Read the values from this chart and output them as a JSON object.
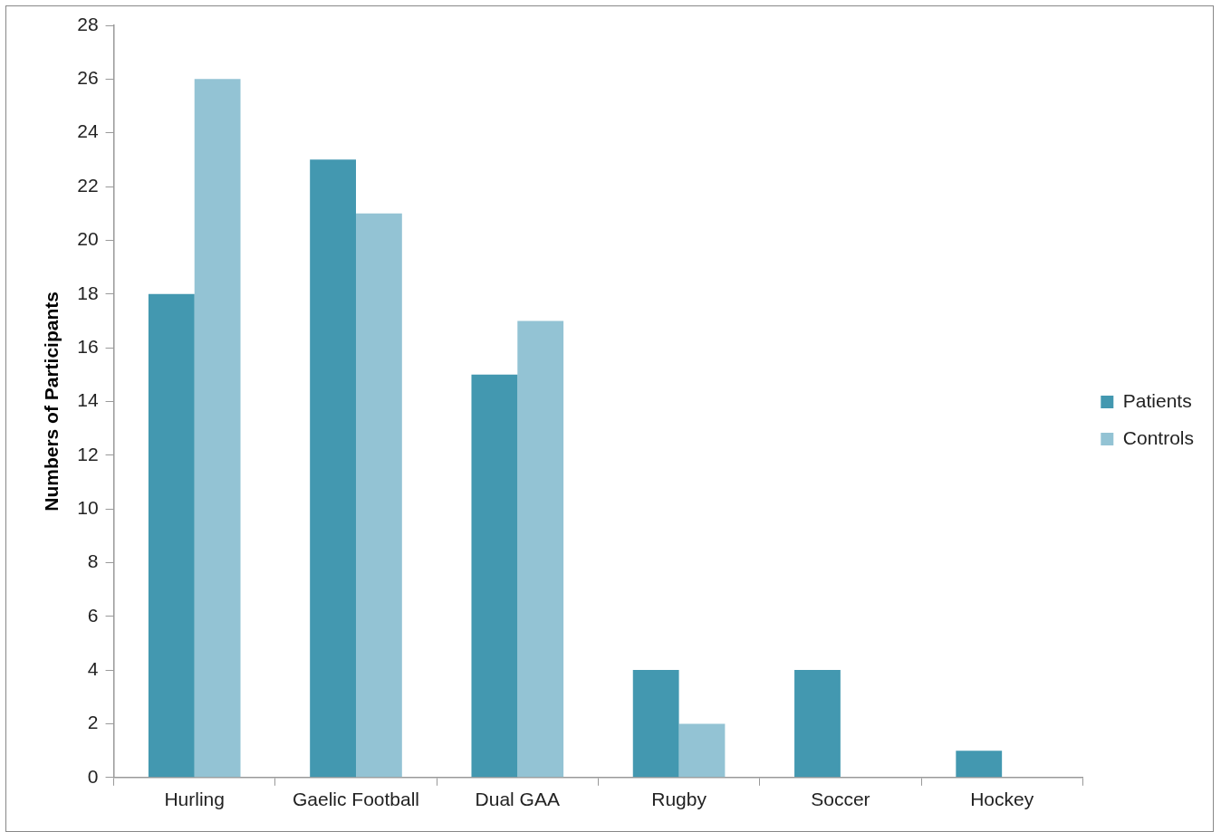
{
  "chart_data": {
    "type": "bar",
    "ylabel": "Numbers of Participants",
    "categories": [
      "Hurling",
      "Gaelic Football",
      "Dual GAA",
      "Rugby",
      "Soccer",
      "Hockey"
    ],
    "series": [
      {
        "name": "Patients",
        "color": "#4398b0",
        "values": [
          18,
          23,
          15,
          4,
          4,
          1
        ]
      },
      {
        "name": "Controls",
        "color": "#93c3d4",
        "values": [
          26,
          21,
          17,
          2,
          0,
          0
        ]
      }
    ],
    "ylim": [
      0,
      28
    ],
    "yticks": [
      0,
      2,
      4,
      6,
      8,
      10,
      12,
      14,
      16,
      18,
      20,
      22,
      24,
      26,
      28
    ],
    "grid": false,
    "legend": "right"
  }
}
